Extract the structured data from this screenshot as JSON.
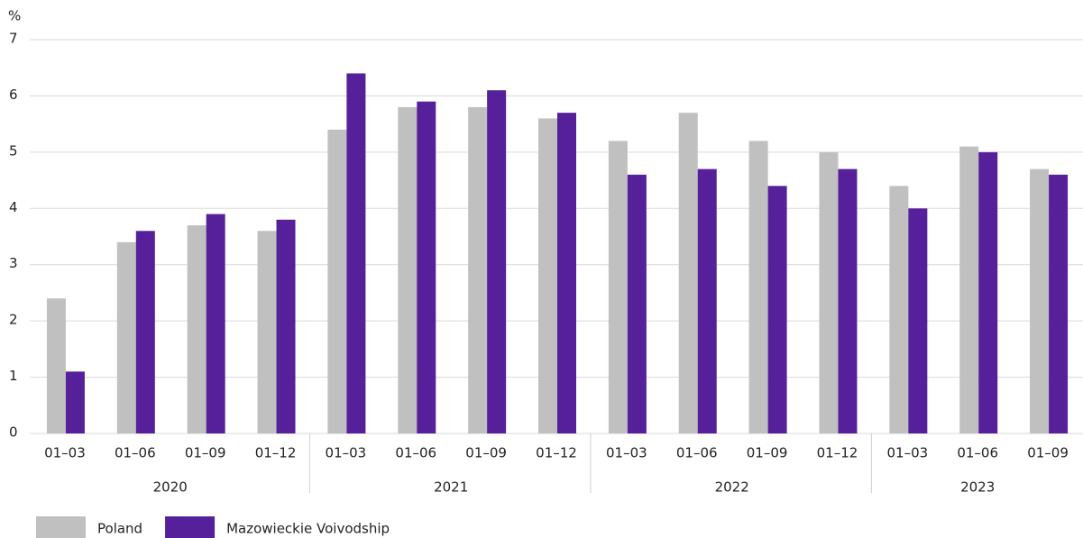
{
  "chart_data": {
    "type": "bar",
    "y_unit": "%",
    "groups": [
      {
        "name": "2020",
        "categories": [
          "01–03",
          "01–06",
          "01–09",
          "01–12"
        ]
      },
      {
        "name": "2021",
        "categories": [
          "01–03",
          "01–06",
          "01–09",
          "01–12"
        ]
      },
      {
        "name": "2022",
        "categories": [
          "01–03",
          "01–06",
          "01–09",
          "01–12"
        ]
      },
      {
        "name": "2023",
        "categories": [
          "01–03",
          "01–06",
          "01–09"
        ]
      }
    ],
    "series": [
      {
        "name": "Poland",
        "color": "#c0c0c0",
        "values": [
          2.4,
          3.4,
          3.7,
          3.6,
          5.4,
          5.8,
          5.8,
          5.6,
          5.2,
          5.7,
          5.2,
          5.0,
          4.4,
          5.1,
          4.7
        ]
      },
      {
        "name": "Mazowieckie Voivodship",
        "color": "#56209a",
        "values": [
          1.1,
          3.6,
          3.9,
          3.8,
          6.4,
          5.9,
          6.1,
          5.7,
          4.6,
          4.7,
          4.4,
          4.7,
          4.0,
          5.0,
          4.6
        ]
      }
    ],
    "ylim": [
      0,
      7
    ],
    "yticks": [
      0,
      1,
      2,
      3,
      4,
      5,
      6,
      7
    ],
    "grid": true,
    "legend": "bottom-left"
  }
}
